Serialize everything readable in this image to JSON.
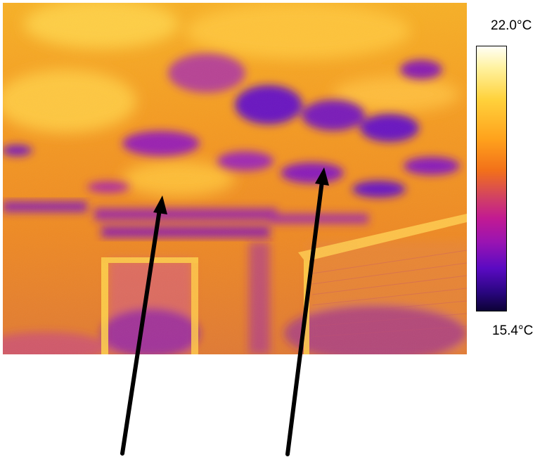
{
  "color_scale": {
    "max_label": "22.0°C",
    "min_label": "15.4°C",
    "gradient_colors": [
      "#fffff6",
      "#ffd23c",
      "#f2701a",
      "#c21a92",
      "#5a0ac2",
      "#0c0236"
    ]
  },
  "annotations": {
    "arrow_count": 2,
    "arrow_color": "#000000"
  }
}
